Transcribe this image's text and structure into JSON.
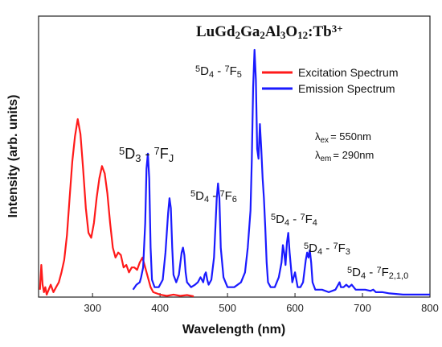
{
  "chart_data": {
    "type": "line",
    "title": {
      "p1": "LuGd",
      "s1": "2",
      "p2": "Ga",
      "s2": "2",
      "p3": "Al",
      "s3": "3",
      "p4": "O",
      "s4": "12",
      "p5": ":Tb",
      "sup": "3+"
    },
    "xlabel": "Wavelength (nm)",
    "ylabel": "Intensity (arb. units)",
    "xlim": [
      220,
      800
    ],
    "ylim": [
      0,
      1.0
    ],
    "xticks": [
      300,
      400,
      500,
      600,
      700,
      800
    ],
    "grid": false,
    "legend_position": "top-right",
    "colors": {
      "excitation": "#ff1a1a",
      "emission": "#1a1aff"
    },
    "series": [
      {
        "name": "Excitation Spectrum",
        "color": "#ff1a1a",
        "x": [
          222,
          224,
          226,
          228,
          230,
          232,
          235,
          238,
          242,
          246,
          250,
          254,
          258,
          262,
          266,
          270,
          274,
          278,
          282,
          286,
          290,
          294,
          298,
          302,
          306,
          310,
          314,
          318,
          322,
          326,
          330,
          334,
          338,
          342,
          346,
          350,
          354,
          358,
          362,
          366,
          370,
          374,
          378,
          382,
          386,
          390,
          395,
          400,
          410,
          420,
          430,
          440,
          450
        ],
        "y": [
          0.03,
          0.13,
          0.05,
          0.02,
          0.04,
          0.01,
          0.03,
          0.05,
          0.02,
          0.04,
          0.06,
          0.1,
          0.15,
          0.25,
          0.4,
          0.55,
          0.65,
          0.72,
          0.66,
          0.52,
          0.36,
          0.26,
          0.24,
          0.3,
          0.4,
          0.48,
          0.53,
          0.5,
          0.42,
          0.3,
          0.2,
          0.16,
          0.18,
          0.17,
          0.12,
          0.13,
          0.1,
          0.12,
          0.12,
          0.11,
          0.14,
          0.16,
          0.12,
          0.08,
          0.04,
          0.02,
          0.015,
          0.01,
          0.005,
          0.01,
          0.005,
          0.008,
          0.003
        ]
      },
      {
        "name": "Emission Spectrum",
        "color": "#1a1aff",
        "x": [
          360,
          365,
          370,
          372,
          375,
          378,
          380,
          382,
          384,
          386,
          388,
          392,
          398,
          404,
          408,
          412,
          414,
          416,
          418,
          420,
          424,
          428,
          432,
          434,
          436,
          438,
          440,
          446,
          452,
          456,
          460,
          464,
          466,
          468,
          470,
          472,
          476,
          480,
          484,
          486,
          488,
          490,
          494,
          500,
          510,
          520,
          526,
          530,
          534,
          536,
          538,
          540,
          542,
          544,
          546,
          548,
          550,
          552,
          554,
          556,
          558,
          560,
          564,
          570,
          576,
          580,
          582,
          584,
          586,
          588,
          590,
          592,
          596,
          600,
          604,
          608,
          612,
          616,
          618,
          620,
          622,
          624,
          626,
          630,
          640,
          650,
          660,
          664,
          666,
          668,
          672,
          676,
          680,
          684,
          690,
          696,
          704,
          712,
          716,
          720,
          730,
          740,
          760,
          780,
          800
        ],
        "y": [
          0.03,
          0.05,
          0.06,
          0.08,
          0.12,
          0.3,
          0.52,
          0.58,
          0.48,
          0.2,
          0.07,
          0.04,
          0.04,
          0.07,
          0.18,
          0.34,
          0.4,
          0.36,
          0.2,
          0.09,
          0.06,
          0.09,
          0.18,
          0.2,
          0.17,
          0.1,
          0.06,
          0.04,
          0.05,
          0.06,
          0.08,
          0.06,
          0.09,
          0.1,
          0.07,
          0.05,
          0.07,
          0.16,
          0.4,
          0.46,
          0.4,
          0.2,
          0.08,
          0.04,
          0.04,
          0.06,
          0.1,
          0.2,
          0.35,
          0.55,
          0.85,
          1.0,
          0.88,
          0.6,
          0.56,
          0.7,
          0.6,
          0.48,
          0.4,
          0.28,
          0.14,
          0.06,
          0.04,
          0.04,
          0.08,
          0.14,
          0.21,
          0.18,
          0.13,
          0.22,
          0.26,
          0.18,
          0.06,
          0.1,
          0.04,
          0.04,
          0.06,
          0.15,
          0.18,
          0.16,
          0.19,
          0.14,
          0.06,
          0.03,
          0.03,
          0.02,
          0.03,
          0.05,
          0.06,
          0.04,
          0.04,
          0.05,
          0.04,
          0.05,
          0.03,
          0.03,
          0.03,
          0.025,
          0.03,
          0.02,
          0.02,
          0.015,
          0.01,
          0.01,
          0.01
        ]
      }
    ],
    "annotations": [
      {
        "base": "5",
        "sub1": "D",
        "sub1b": "3",
        "mid": " - ",
        "sup": "7",
        "sub2": "F",
        "sub2b": "J"
      },
      {
        "base": "5",
        "sub1": "D",
        "sub1b": "4",
        "mid": " - ",
        "sup": "7",
        "sub2": "F",
        "sub2b": "5"
      },
      {
        "base": "5",
        "sub1": "D",
        "sub1b": "4",
        "mid": " - ",
        "sup": "7",
        "sub2": "F",
        "sub2b": "6"
      },
      {
        "base": "5",
        "sub1": "D",
        "sub1b": "4",
        "mid": " - ",
        "sup": "7",
        "sub2": "F",
        "sub2b": "4"
      },
      {
        "base": "5",
        "sub1": "D",
        "sub1b": "4",
        "mid": " - ",
        "sup": "7",
        "sub2": "F",
        "sub2b": "3"
      },
      {
        "base": "5",
        "sub1": "D",
        "sub1b": "4",
        "mid": " - ",
        "sup": "7",
        "sub2": "F",
        "sub2b": "2,1,0"
      }
    ],
    "lambda_ex": {
      "sym": "λ",
      "sub": "ex",
      "val": "= 550nm"
    },
    "lambda_em": {
      "sym": "λ",
      "sub": "em",
      "val": "= 290nm"
    }
  }
}
